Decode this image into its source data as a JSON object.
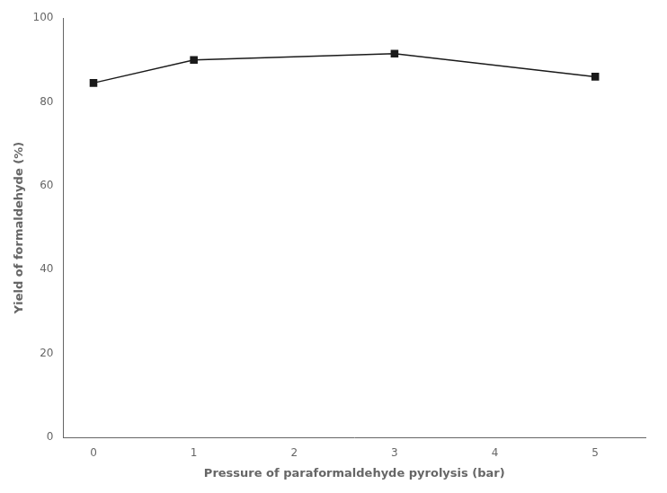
{
  "chart_data": {
    "type": "line",
    "xlabel": "Pressure of paraformaldehyde pyrolysis (bar)",
    "ylabel": "Yield of formaldehyde (%)",
    "x": [
      0,
      1,
      3,
      5
    ],
    "values": [
      84.5,
      90.0,
      91.5,
      86.0
    ],
    "xlim": [
      -0.3,
      5.5
    ],
    "ylim": [
      0,
      100
    ],
    "xticks": [
      0,
      1,
      2,
      3,
      4,
      5
    ],
    "yticks": [
      0,
      20,
      40,
      60,
      80,
      100
    ],
    "color": "#1a1a1a",
    "marker": "square",
    "grid": false
  }
}
